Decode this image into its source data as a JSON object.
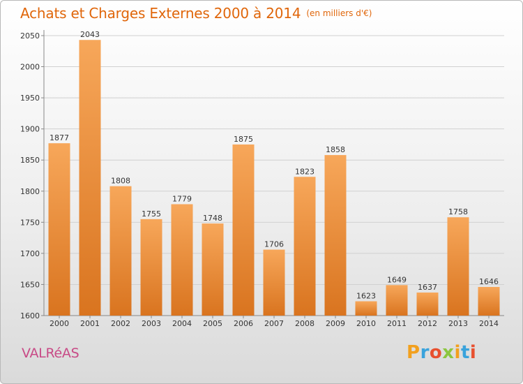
{
  "header": {
    "title": "Achats et Charges Externes 2000 à 2014",
    "unit": "(en milliers d'€)"
  },
  "footer": {
    "commune": "VALRéAS",
    "logo_letters": [
      "P",
      "r",
      "o",
      "x",
      "i",
      "t",
      "i"
    ],
    "logo_colors": [
      "#f2a01e",
      "#3aa3dc",
      "#e8502f",
      "#8cc63f",
      "#f2a01e",
      "#3aa3dc",
      "#e8502f"
    ]
  },
  "colors": {
    "bar_top": "#f7a75a",
    "bar_bottom": "#d9741f",
    "title": "#e0660a",
    "commune": "#c84a86",
    "grid": "#d0d0d0"
  },
  "chart_data": {
    "type": "bar",
    "categories": [
      "2000",
      "2001",
      "2002",
      "2003",
      "2004",
      "2005",
      "2006",
      "2007",
      "2008",
      "2009",
      "2010",
      "2011",
      "2012",
      "2013",
      "2014"
    ],
    "values": [
      1877,
      2043,
      1808,
      1755,
      1779,
      1748,
      1875,
      1706,
      1823,
      1858,
      1623,
      1649,
      1637,
      1758,
      1646
    ],
    "data_labels": [
      "1877",
      "2043",
      "1808",
      "1755",
      "1779",
      "1748",
      "1875",
      "1706",
      "1823",
      "1858",
      "1623",
      "1649",
      "1637",
      "1758",
      "1646"
    ],
    "yticks": [
      "1600",
      "1650",
      "1700",
      "1750",
      "1800",
      "1850",
      "1900",
      "1950",
      "2000",
      "2050"
    ],
    "ylim": [
      1600,
      2050
    ],
    "grid": true,
    "legend": "none",
    "title": "Achats et Charges Externes 2000 à 2014",
    "xlabel": "",
    "ylabel": ""
  }
}
